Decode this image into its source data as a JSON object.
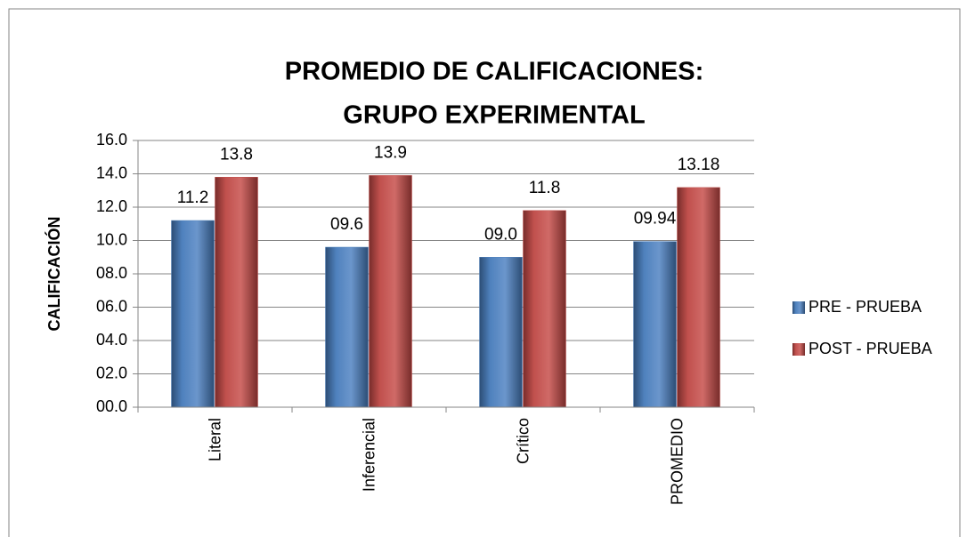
{
  "chart_data": {
    "type": "bar",
    "title": [
      "PROMEDIO DE CALIFICACIONES:",
      "GRUPO EXPERIMENTAL"
    ],
    "ylabel": "CALIFICACIÓN",
    "categories": [
      "Literal",
      "Inferencial",
      "Crítico",
      "PROMEDIO"
    ],
    "series": [
      {
        "name": "PRE - PRUEBA",
        "color": "#4f81bd",
        "values": [
          11.2,
          9.6,
          9.0,
          9.94
        ],
        "value_labels": [
          "11.2",
          "09.6",
          "09.0",
          "09.94"
        ]
      },
      {
        "name": "POST - PRUEBA",
        "color": "#c0504d",
        "values": [
          13.8,
          13.9,
          11.8,
          13.18
        ],
        "value_labels": [
          "13.8",
          "13.9",
          "11.8",
          "13.18"
        ]
      }
    ],
    "ylim": [
      0,
      16
    ],
    "yticks": [
      {
        "value": 0,
        "label": "00.0"
      },
      {
        "value": 2,
        "label": "02.0"
      },
      {
        "value": 4,
        "label": "04.0"
      },
      {
        "value": 6,
        "label": "06.0"
      },
      {
        "value": 8,
        "label": "08.0"
      },
      {
        "value": 10,
        "label": "10.0"
      },
      {
        "value": 12,
        "label": "12.0"
      },
      {
        "value": 14,
        "label": "14.0"
      },
      {
        "value": 16,
        "label": "16.0"
      }
    ],
    "grid": true,
    "legend": "right"
  }
}
